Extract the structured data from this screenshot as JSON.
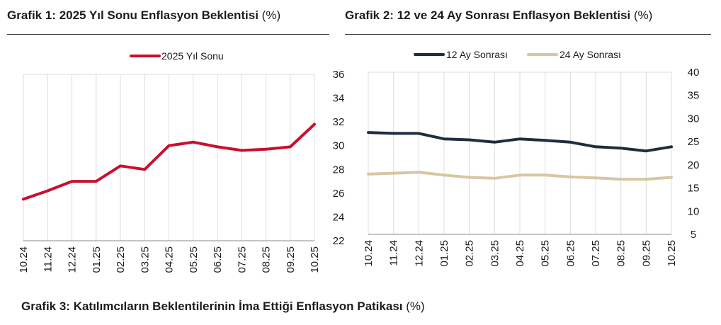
{
  "chart1": {
    "title_bold": "Grafik 1: 2025 Yıl Sonu Enflasyon Beklentisi",
    "title_unit": "(%)"
  },
  "chart2": {
    "title_bold": "Grafik 2: 12 ve 24 Ay Sonrası Enflasyon Beklentisi",
    "title_unit": "(%)"
  },
  "footer": {
    "title_bold": "Grafik 3: Katılımcıların Beklentilerinin İma Ettiği Enflasyon Patikası",
    "title_unit": "(%)"
  },
  "colors": {
    "series_2025": "#c8102e",
    "series_12": "#1f2d3d",
    "series_24": "#d8c6a2",
    "grid": "#dcdcdc"
  },
  "chart_data": [
    {
      "type": "line",
      "title": "Grafik 1: 2025 Yıl Sonu Enflasyon Beklentisi (%)",
      "categories": [
        "10.24",
        "11.24",
        "12.24",
        "01.25",
        "02.25",
        "03.25",
        "04.25",
        "05.25",
        "06.25",
        "07.25",
        "08.25",
        "09.25",
        "10.25"
      ],
      "series": [
        {
          "name": "2025 Yıl Sonu",
          "color": "#c8102e",
          "values": [
            25.5,
            26.2,
            27.0,
            27.0,
            28.3,
            28.0,
            30.0,
            30.3,
            29.9,
            29.6,
            29.7,
            29.9,
            31.8
          ]
        }
      ],
      "ylim": [
        22,
        36
      ],
      "yticks": [
        22,
        24,
        26,
        28,
        30,
        32,
        34,
        36
      ],
      "y_axis_side": "right",
      "grid": "vertical",
      "legend": "top-center"
    },
    {
      "type": "line",
      "title": "Grafik 2: 12 ve 24 Ay Sonrası Enflasyon Beklentisi (%)",
      "categories": [
        "10.24",
        "11.24",
        "12.24",
        "01.25",
        "02.25",
        "03.25",
        "04.25",
        "05.25",
        "06.25",
        "07.25",
        "08.25",
        "09.25",
        "10.25"
      ],
      "series": [
        {
          "name": "12 Ay Sonrası",
          "color": "#1f2d3d",
          "values": [
            27.0,
            26.8,
            26.8,
            25.6,
            25.4,
            24.9,
            25.6,
            25.3,
            24.9,
            23.9,
            23.6,
            23.0,
            23.9
          ]
        },
        {
          "name": "24 Ay Sonrası",
          "color": "#d8c6a2",
          "values": [
            18.0,
            18.2,
            18.4,
            17.8,
            17.3,
            17.1,
            17.8,
            17.8,
            17.4,
            17.2,
            16.9,
            16.9,
            17.3
          ]
        }
      ],
      "ylim": [
        5,
        40
      ],
      "yticks": [
        5,
        10,
        15,
        20,
        25,
        30,
        35,
        40
      ],
      "y_axis_side": "right",
      "grid": "vertical",
      "legend": "top-center"
    }
  ]
}
